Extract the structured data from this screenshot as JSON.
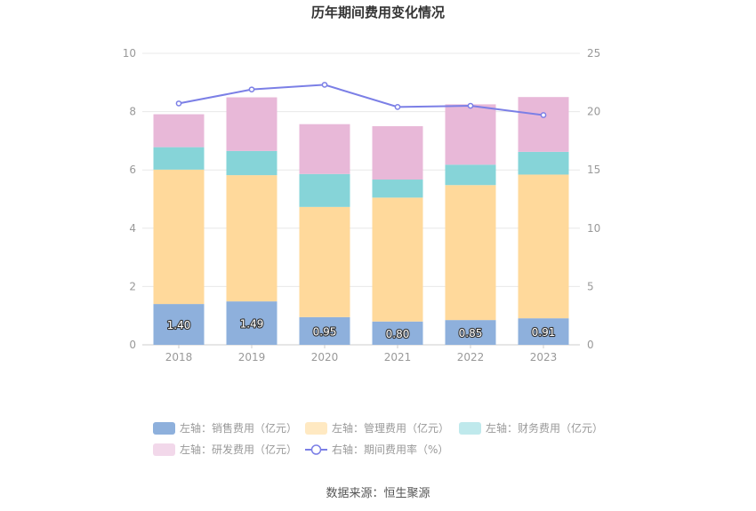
{
  "chart_data": {
    "type": "bar",
    "title": "历年期间费用变化情况",
    "categories": [
      "2018",
      "2019",
      "2020",
      "2021",
      "2022",
      "2023"
    ],
    "stacked": true,
    "y_left": {
      "ylim": [
        0,
        10
      ],
      "ticks": [
        "0",
        "2",
        "4",
        "6",
        "8",
        "10"
      ]
    },
    "y_right": {
      "ylim": [
        0,
        25
      ],
      "ticks": [
        "0",
        "5",
        "10",
        "15",
        "20",
        "25"
      ]
    },
    "grid": true,
    "legend_position": "bottom",
    "series": [
      {
        "name": "左轴：销售费用（亿元）",
        "axis": "left",
        "color": "#8eb0dc",
        "legend_color": "#8eb0dc",
        "values": [
          1.4,
          1.49,
          0.95,
          0.8,
          0.85,
          0.91
        ],
        "labels": [
          "1.40",
          "1.49",
          "0.95",
          "0.80",
          "0.85",
          "0.91"
        ]
      },
      {
        "name": "左轴：管理费用（亿元）",
        "axis": "left",
        "color": "#ffd99b",
        "legend_color": "#ffe9c2",
        "values": [
          4.61,
          4.33,
          3.78,
          4.25,
          4.63,
          4.93
        ]
      },
      {
        "name": "左轴：财务费用（亿元）",
        "axis": "left",
        "color": "#86d4d8",
        "legend_color": "#bfe9ec",
        "values": [
          0.77,
          0.83,
          1.13,
          0.62,
          0.7,
          0.78
        ]
      },
      {
        "name": "左轴：研发费用（亿元）",
        "axis": "left",
        "color": "#e8b8d8",
        "legend_color": "#f2d8ea",
        "values": [
          1.13,
          1.84,
          1.71,
          1.83,
          2.07,
          1.88
        ]
      },
      {
        "name": "右轴：期间费用率（%）",
        "axis": "right",
        "type": "line",
        "color": "#7b7fe6",
        "values": [
          20.7,
          21.9,
          22.3,
          20.4,
          20.5,
          19.7
        ]
      }
    ]
  },
  "source": "数据来源：恒生聚源"
}
